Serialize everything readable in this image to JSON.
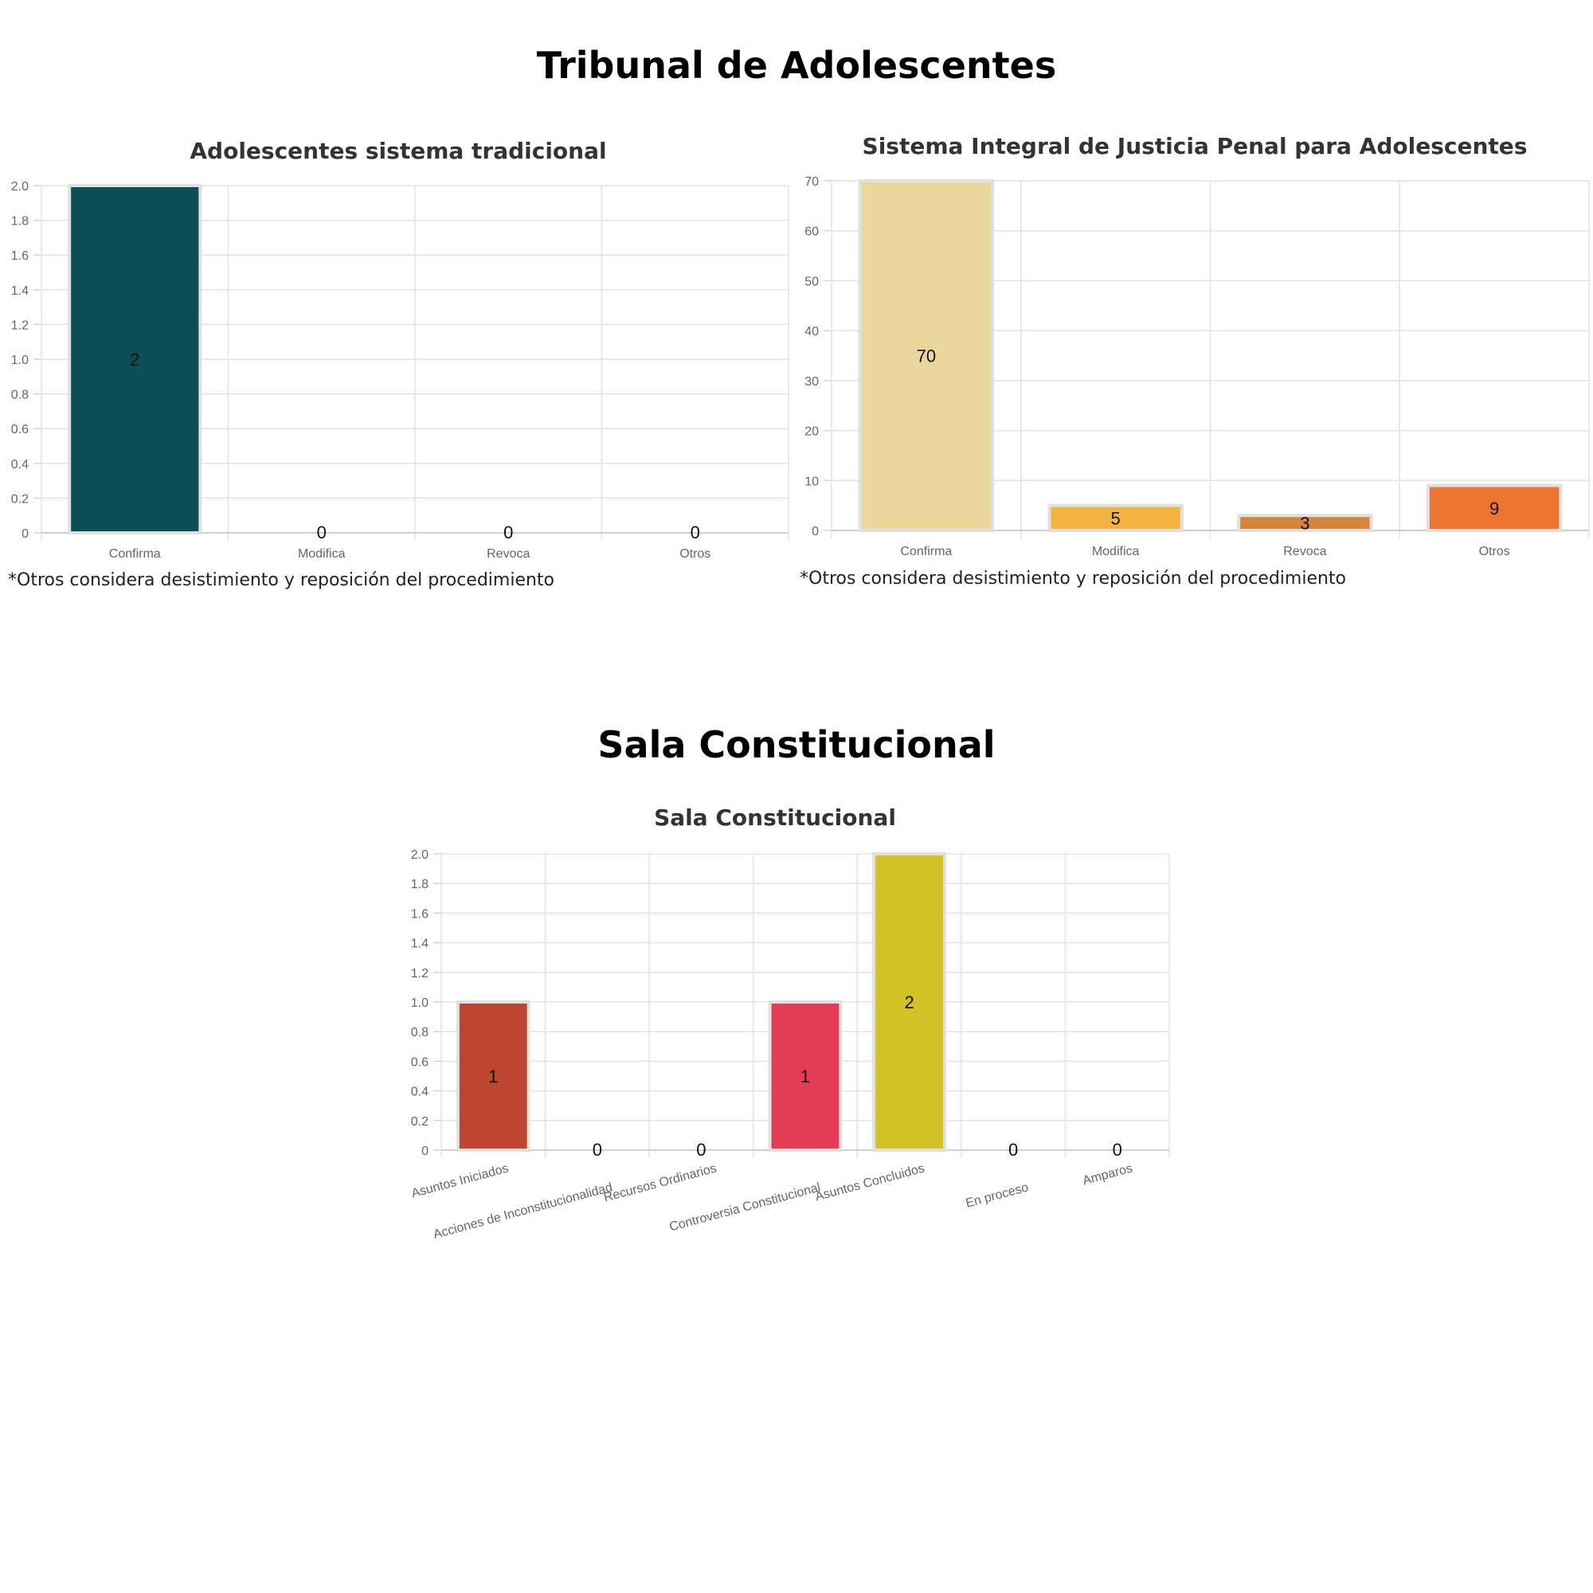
{
  "sections": {
    "tribunal": {
      "title": "Tribunal de Adolescentes"
    },
    "sala": {
      "title": "Sala Constitucional"
    }
  },
  "charts": {
    "tradicional": {
      "note": "*Otros considera desistimiento y reposición del procedimiento"
    },
    "integral": {
      "note": "*Otros considera desistimiento y reposición del procedimiento"
    }
  },
  "chart_data": [
    {
      "type": "bar",
      "title": "Adolescentes sistema tradicional",
      "categories": [
        "Confirma",
        "Modifica",
        "Revoca",
        "Otros"
      ],
      "values": [
        2,
        0,
        0,
        0
      ],
      "ylim": [
        0,
        2
      ],
      "yticks": [
        "0",
        "0.2",
        "0.4",
        "0.6",
        "0.8",
        "1.0",
        "1.2",
        "1.4",
        "1.6",
        "1.8",
        "2.0"
      ],
      "colors": [
        "#0b4f55",
        "#0b4f55",
        "#0b4f55",
        "#0b4f55"
      ],
      "grid": true
    },
    {
      "type": "bar",
      "title": "Sistema Integral de Justicia Penal para Adolescentes",
      "categories": [
        "Confirma",
        "Modifica",
        "Revoca",
        "Otros"
      ],
      "values": [
        70,
        5,
        3,
        9
      ],
      "ylim": [
        0,
        70
      ],
      "yticks": [
        "0",
        "10",
        "20",
        "30",
        "40",
        "50",
        "60",
        "70"
      ],
      "colors": [
        "#ead79b",
        "#f2b340",
        "#d5863a",
        "#ec7631"
      ],
      "grid": true
    },
    {
      "type": "bar",
      "title": "Sala Constitucional",
      "categories": [
        "Asuntos Iniciados",
        "Acciones de Inconstitucionalidad",
        "Recursos Ordinarios",
        "Controversia Constitucional",
        "Asuntos Concluidos",
        "En proceso",
        "Amparos"
      ],
      "values": [
        1,
        0,
        0,
        1,
        2,
        0,
        0
      ],
      "ylim": [
        0,
        2
      ],
      "yticks": [
        "0",
        "0.2",
        "0.4",
        "0.6",
        "0.8",
        "1.0",
        "1.2",
        "1.4",
        "1.6",
        "1.8",
        "2.0"
      ],
      "colors": [
        "#be4630",
        "#be4630",
        "#be4630",
        "#e33c54",
        "#d3c225",
        "#d3c225",
        "#d3c225"
      ],
      "grid": true
    }
  ]
}
